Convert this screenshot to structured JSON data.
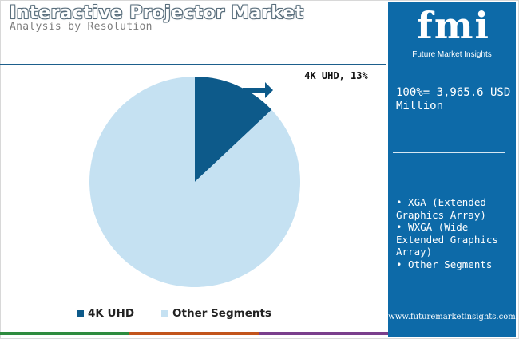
{
  "header": {
    "title": "Interactive Projector Market",
    "subtitle": "Analysis by Resolution"
  },
  "logo": {
    "brand": "fmi",
    "tagline": "Future Market Insights"
  },
  "panel": {
    "total_text": "100%= 3,965.6 USD Million",
    "segments": [
      "• XGA (Extended Graphics Array)",
      "• WXGA (Wide Extended Graphics Array)",
      "• Other Segments"
    ],
    "website": "www.futuremarketinsights.com"
  },
  "colors": {
    "primary": "#0d5a8a",
    "secondary": "#c5e1f2",
    "panel": "#0d6aa8",
    "bar": [
      "#2e8b3f",
      "#c2541c",
      "#7a3f8c"
    ]
  },
  "chart_data": {
    "type": "pie",
    "title": "Interactive Projector Market",
    "subtitle": "Analysis by Resolution",
    "slices": [
      {
        "label": "4K UHD",
        "value": 13,
        "color": "#0d5a8a"
      },
      {
        "label": "Other Segments",
        "value": 87,
        "color": "#c5e1f2"
      }
    ],
    "annotation": "4K UHD, 13%",
    "legend": [
      "4K UHD",
      "Other Segments"
    ],
    "legend_position": "bottom"
  }
}
